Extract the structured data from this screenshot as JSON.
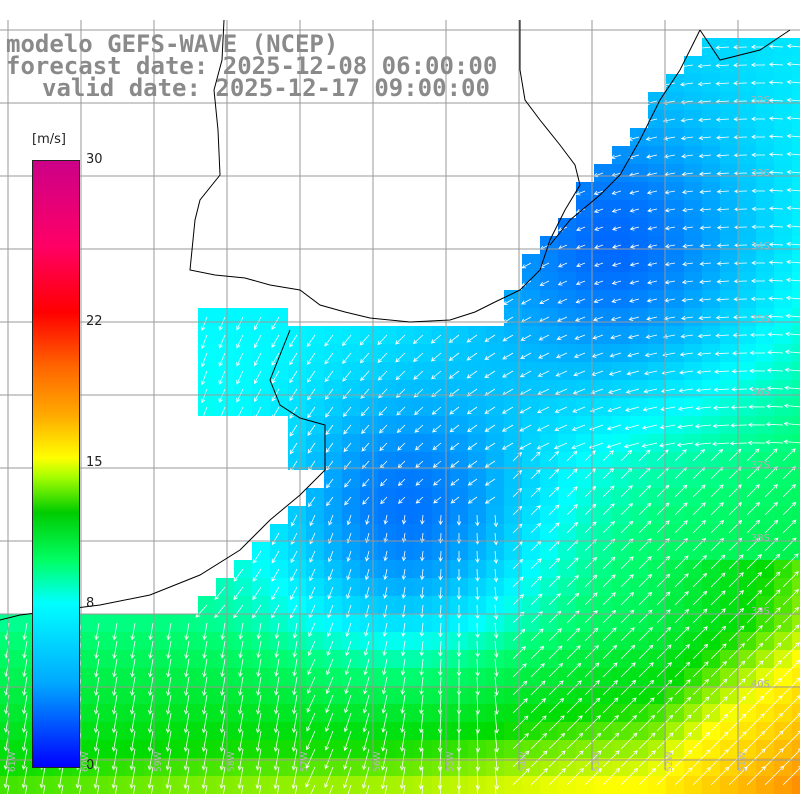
{
  "title": {
    "line1": "modelo GEFS-WAVE (NCEP)",
    "line2": "forecast date: 2025-12-08 06:00:00",
    "line3": "valid date: 2025-12-17 09:00:00"
  },
  "colorbar": {
    "unit": "[m/s]",
    "min": 0,
    "max": 30,
    "ticks": [
      "30",
      "22",
      "15",
      "8",
      "0"
    ],
    "tick_values": [
      30,
      22,
      15,
      8,
      0
    ]
  },
  "lat_labels": [
    "32S",
    "33S",
    "34S",
    "35S",
    "36S",
    "37S",
    "38S",
    "39S",
    "40S"
  ],
  "lon_labels": [
    "61W",
    "60W",
    "59W",
    "58W",
    "57W",
    "56W",
    "55W",
    "54W",
    "53W",
    "52W",
    "51W"
  ],
  "colors": {
    "land": "#ffffff",
    "grid": "#9a9a9a",
    "coast": "#000000",
    "arrow": "#ffffff",
    "title": "#8a8a8a"
  }
}
